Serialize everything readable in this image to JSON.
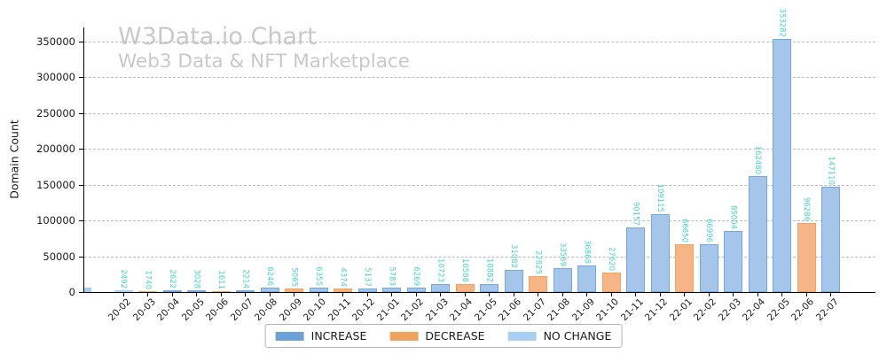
{
  "chart_data": {
    "type": "bar",
    "title": "W3Data.io Chart",
    "subtitle": "Web3 Data & NFT Marketplace",
    "title_color": "#c9c9c9",
    "ylabel": "Domain Count",
    "xlabel": "",
    "ylim": [
      0,
      371000
    ],
    "y_ticks": [
      0,
      50000,
      100000,
      150000,
      200000,
      250000,
      300000,
      350000
    ],
    "grid": true,
    "grid_style": "dashed-horizontal",
    "legend_position": "bottom-center",
    "categories": [
      "20-02",
      "20-03",
      "20-04",
      "20-05",
      "20-06",
      "20-07",
      "20-08",
      "20-09",
      "20-10",
      "20-11",
      "20-12",
      "21-01",
      "21-02",
      "21-03",
      "21-04",
      "21-05",
      "21-06",
      "21-07",
      "21-08",
      "21-09",
      "21-10",
      "21-11",
      "21-12",
      "22-01",
      "22-02",
      "22-03",
      "22-04",
      "22-05",
      "22-06",
      "22-07"
    ],
    "values": [
      2492,
      1740,
      2622,
      3028,
      1611,
      2214,
      6246,
      5065,
      6355,
      4374,
      5137,
      5783,
      6269,
      10723,
      10588,
      10882,
      31082,
      22825,
      33569,
      36868,
      27620,
      90157,
      109115,
      66650,
      66996,
      85004,
      162480,
      353282,
      96286,
      147110
    ],
    "changes": [
      "no_change",
      "decrease",
      "increase",
      "increase",
      "decrease",
      "increase",
      "increase",
      "decrease",
      "increase",
      "decrease",
      "increase",
      "increase",
      "increase",
      "increase",
      "decrease",
      "increase",
      "increase",
      "decrease",
      "increase",
      "increase",
      "decrease",
      "increase",
      "increase",
      "decrease",
      "increase",
      "increase",
      "increase",
      "increase",
      "decrease",
      "increase"
    ],
    "series_colors": {
      "increase": {
        "fill": "#a5c5eb",
        "edge": "#74a7db"
      },
      "decrease": {
        "fill": "#f6b587",
        "edge": "#f0a35c"
      },
      "no_change": {
        "fill": "#c3def5",
        "edge": "#a6cff2"
      }
    },
    "value_label_color": "#45d4c8",
    "legend": [
      {
        "label": "INCREASE",
        "color": "#6ca2d8",
        "key": "increase"
      },
      {
        "label": "DECREASE",
        "color": "#f0a35c",
        "key": "decrease"
      },
      {
        "label": "NO CHANGE",
        "color": "#a6cff2",
        "key": "no_change"
      }
    ]
  }
}
